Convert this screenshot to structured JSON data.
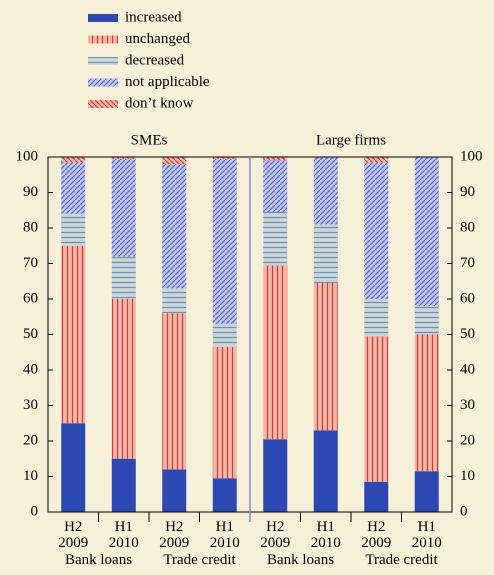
{
  "chart_data": {
    "type": "stacked_bar",
    "panels": [
      "SMEs",
      "Large firms"
    ],
    "categories": [
      "H2 2009",
      "H1 2010",
      "H2 2009",
      "H1 2010",
      "H2 2009",
      "H1 2010",
      "H2 2009",
      "H1 2010"
    ],
    "groups": [
      "Bank loans",
      "Trade credit",
      "Bank loans",
      "Trade credit"
    ],
    "series": [
      {
        "name": "increased",
        "color": "#2c48b2",
        "hatch": "none",
        "hatch_color": "#2c48b2",
        "values": [
          25,
          15,
          12,
          9.5,
          20.5,
          23,
          8.5,
          11.5
        ]
      },
      {
        "name": "unchanged",
        "color": "#f2b7a6",
        "hatch": "vertical",
        "hatch_color": "#c83c3c",
        "values": [
          50,
          45,
          44,
          37,
          49,
          41.5,
          41,
          38.5
        ]
      },
      {
        "name": "decreased",
        "color": "#cad5dc",
        "hatch": "horizontal",
        "hatch_color": "#6e8ea6",
        "values": [
          9,
          12,
          7,
          6.5,
          15,
          16.5,
          10.5,
          8
        ]
      },
      {
        "name": "not applicable",
        "color": "#c3c6ee",
        "hatch": "diagonal",
        "hatch_color": "#5565c4",
        "values": [
          14.5,
          27.5,
          35,
          46.5,
          14.5,
          19,
          38.5,
          42
        ]
      },
      {
        "name": "don’t know",
        "color": "#f2b7a6",
        "hatch": "antidiagonal",
        "hatch_color": "#c83c3c",
        "values": [
          1.5,
          0.5,
          2,
          0.5,
          1,
          0,
          1.5,
          0
        ]
      }
    ],
    "ylim": [
      0,
      100
    ],
    "yticks": [
      0,
      10,
      20,
      30,
      40,
      50,
      60,
      70,
      80,
      90,
      100
    ],
    "y2lim": [
      0,
      100
    ],
    "y2ticks": [
      0,
      10,
      20,
      30,
      40,
      50,
      60,
      70,
      80,
      90,
      100
    ]
  }
}
